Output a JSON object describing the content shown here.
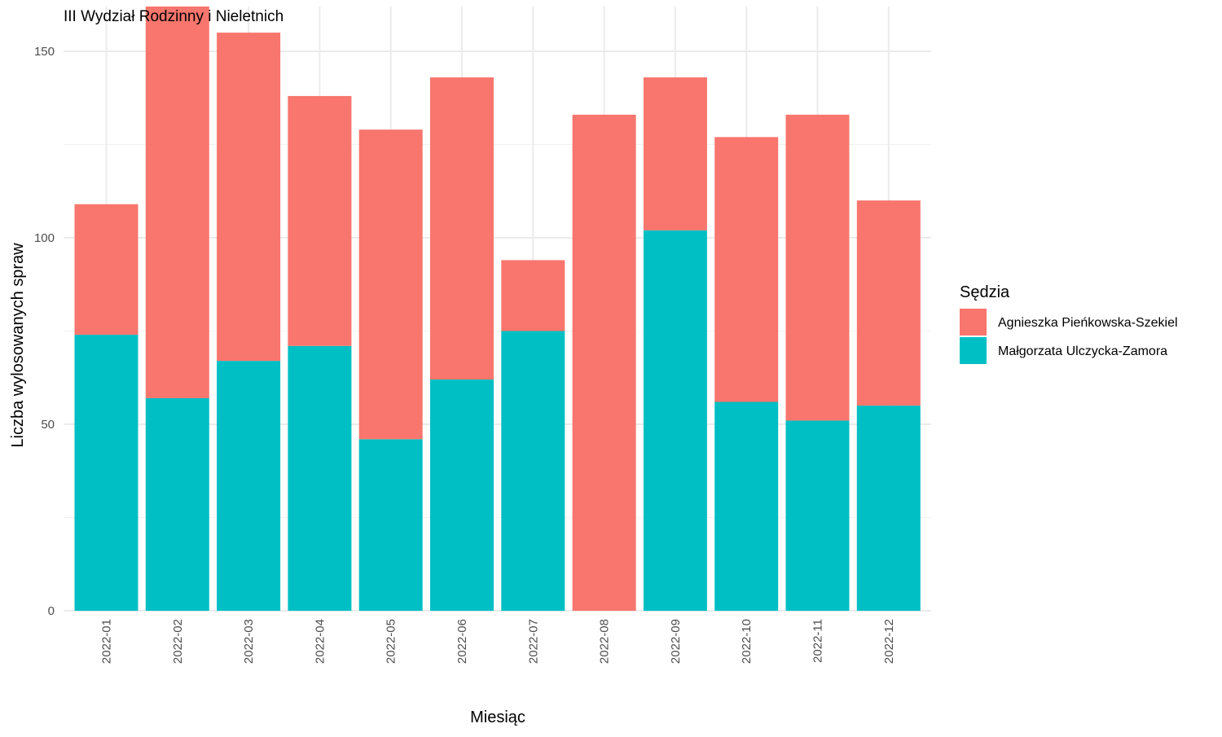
{
  "chart_data": {
    "type": "bar",
    "stacked": true,
    "title": "III Wydział Rodzinny i Nieletnich",
    "xlabel": "Miesiąc",
    "ylabel": "Liczba wylosowanych spraw",
    "ylim": [
      0,
      162
    ],
    "yticks": [
      0,
      50,
      100,
      150
    ],
    "ytick_labels": [
      "0",
      "50",
      "100",
      "150"
    ],
    "grid": true,
    "legend": {
      "title": "Sędzia",
      "position": "right"
    },
    "categories": [
      "2022-01",
      "2022-02",
      "2022-03",
      "2022-04",
      "2022-05",
      "2022-06",
      "2022-07",
      "2022-08",
      "2022-09",
      "2022-10",
      "2022-11",
      "2022-12"
    ],
    "series": [
      {
        "name": "Małgorzata Ulczycka-Zamora",
        "color": "#00BFC4",
        "values": [
          74,
          57,
          67,
          71,
          46,
          62,
          75,
          0,
          102,
          56,
          51,
          55
        ]
      },
      {
        "name": "Agnieszka Pieńkowska-Szekiel",
        "color": "#F8766D",
        "values": [
          35,
          105,
          88,
          67,
          83,
          81,
          19,
          133,
          41,
          71,
          82,
          55
        ]
      }
    ],
    "legend_order": [
      "Agnieszka Pieńkowska-Szekiel",
      "Małgorzata Ulczycka-Zamora"
    ]
  }
}
